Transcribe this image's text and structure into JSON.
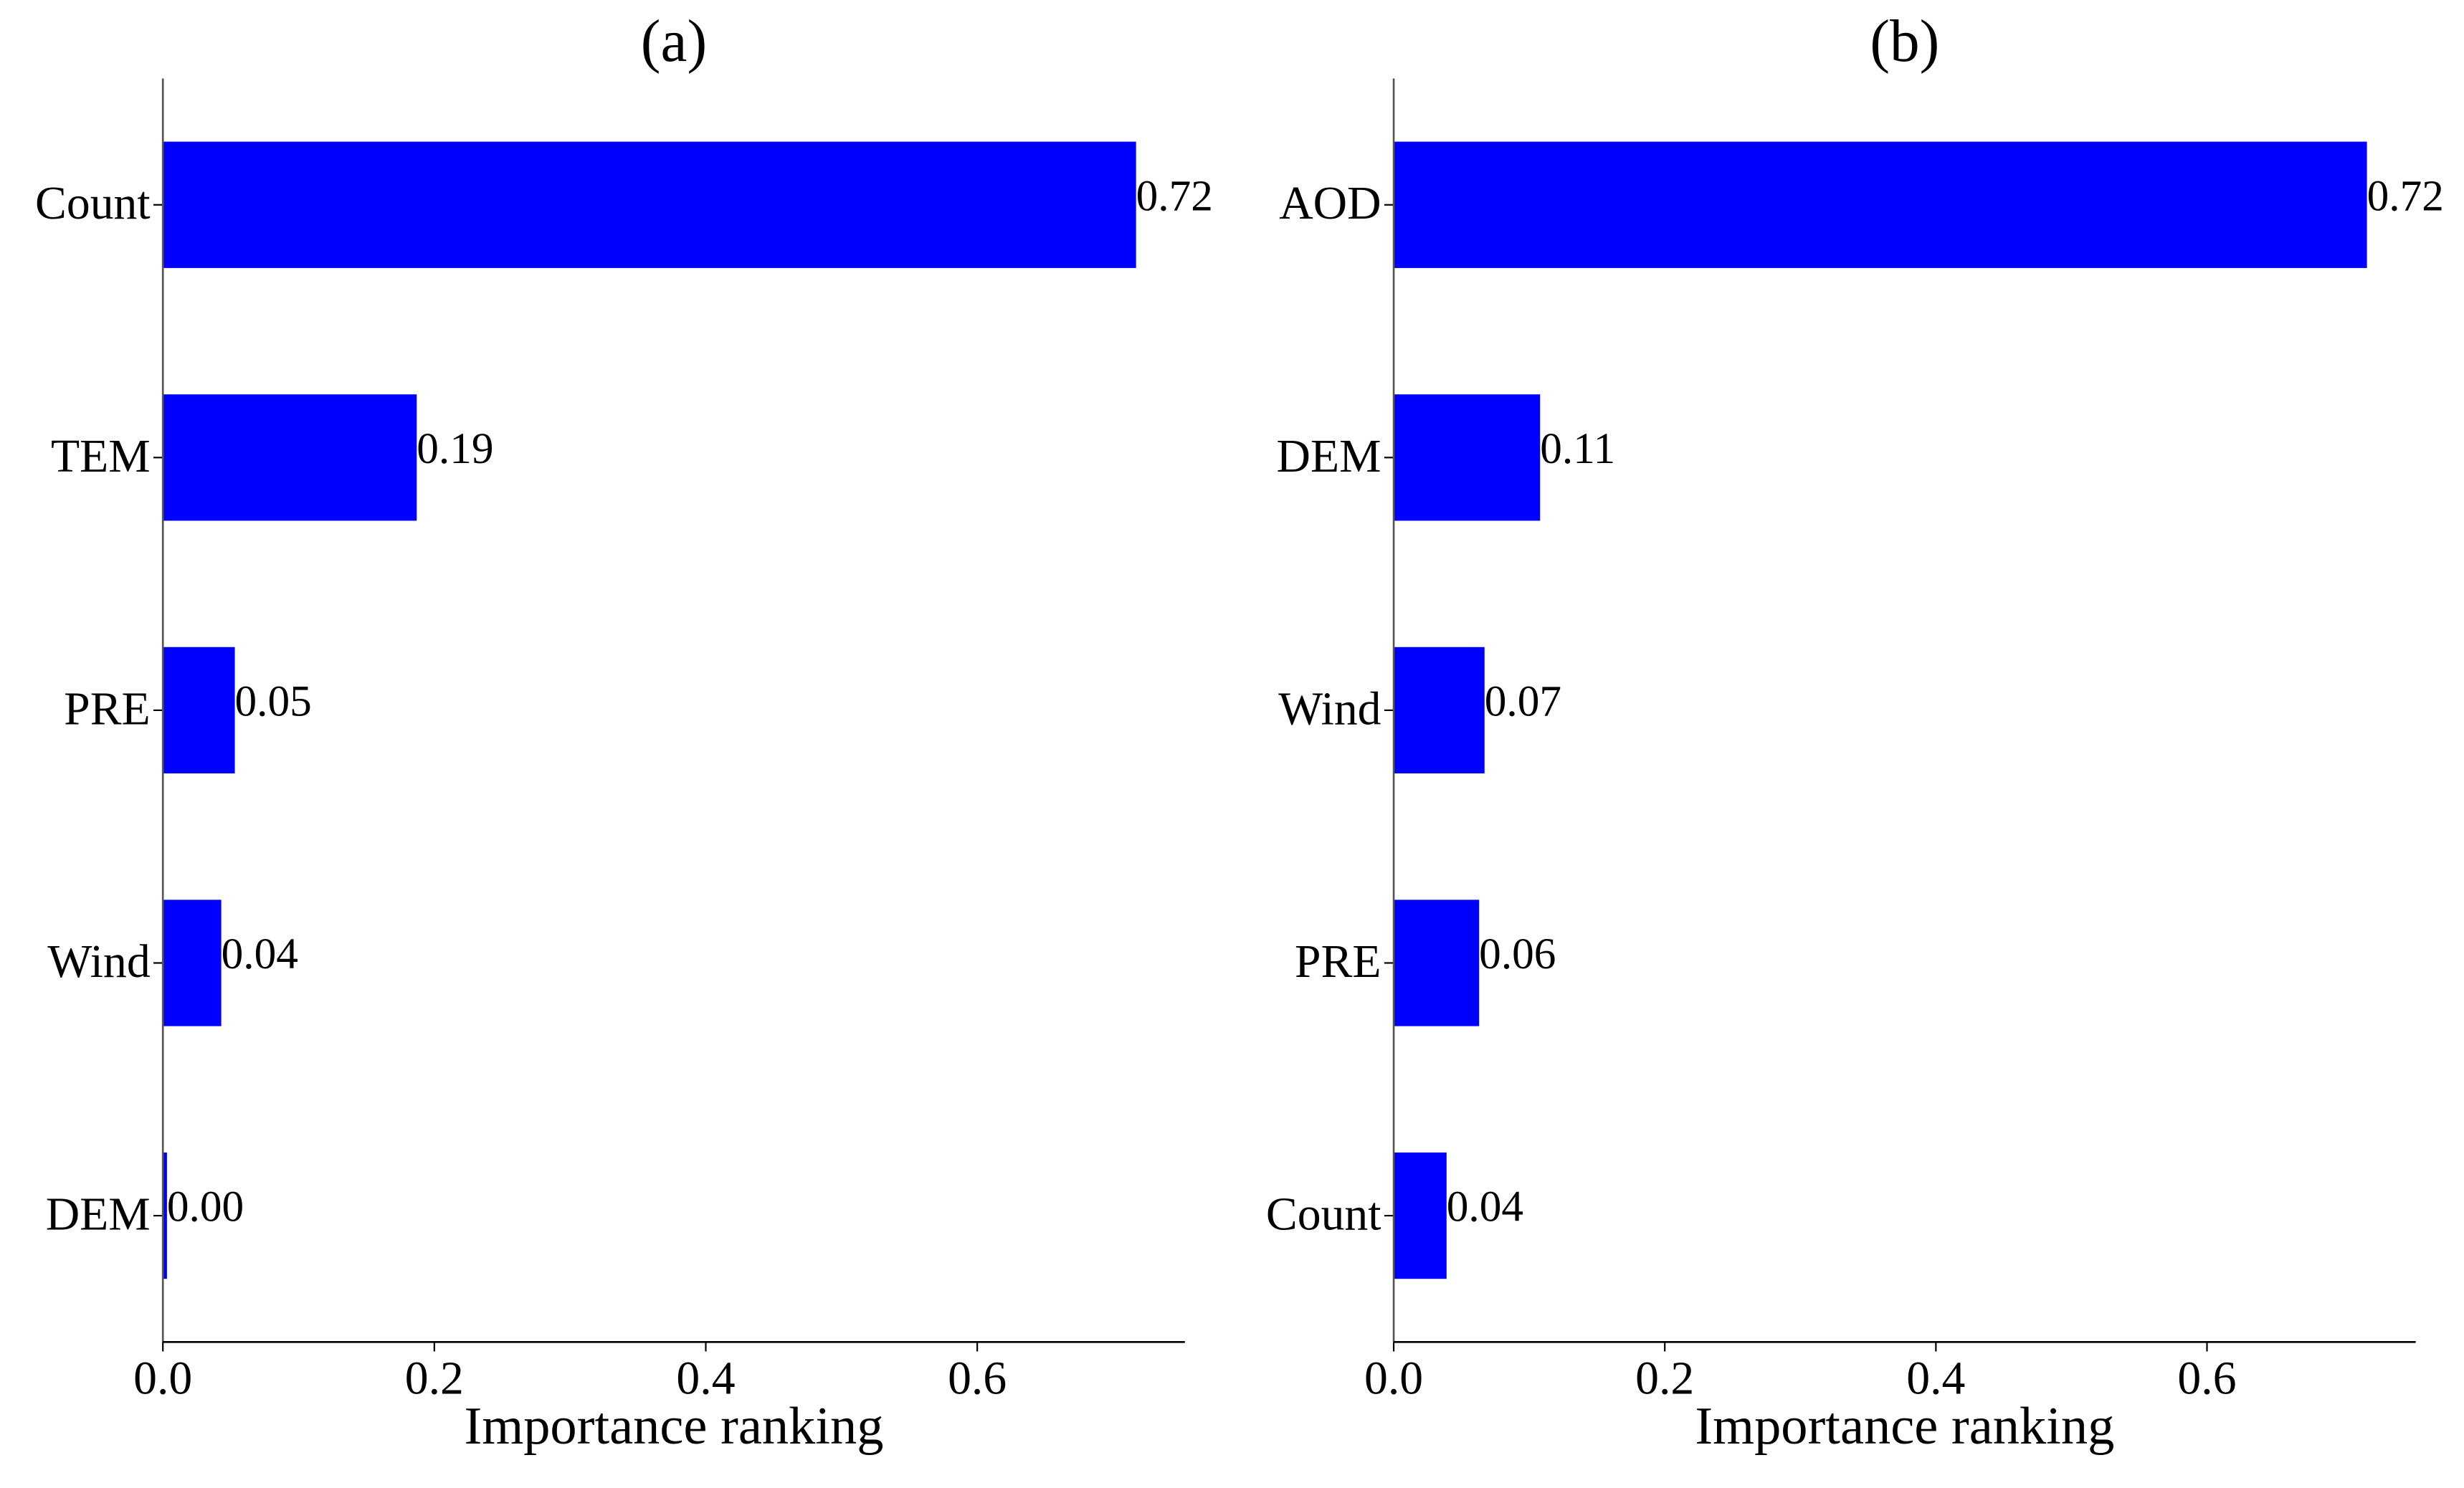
{
  "chart_data": [
    {
      "type": "bar",
      "orientation": "horizontal",
      "title": "(a)",
      "x_label": "Importance ranking",
      "categories": [
        "Count",
        "TEM",
        "PRE",
        "Wind",
        "DEM"
      ],
      "values": [
        0.717,
        0.187,
        0.053,
        0.043,
        0.003
      ],
      "value_labels": [
        "0.72",
        "0.19",
        "0.05",
        "0.04",
        "0.00"
      ],
      "color": "#0000ff",
      "xlim": [
        0,
        0.753
      ],
      "xticks": [
        {
          "value": 0,
          "label": "0.0"
        },
        0.2,
        0.4,
        0.6
      ]
    },
    {
      "type": "bar",
      "orientation": "horizontal",
      "title": "(b)",
      "x_label": "Importance ranking",
      "categories": [
        "AOD",
        "DEM",
        "Wind",
        "PRE",
        "Count"
      ],
      "values": [
        0.718,
        0.108,
        0.067,
        0.063,
        0.039
      ],
      "value_labels": [
        "0.72",
        "0.11",
        "0.07",
        "0.06",
        "0.04"
      ],
      "color": "#0000ff",
      "xlim": [
        0,
        0.754
      ],
      "xticks": [
        {
          "value": 0,
          "label": "0.0"
        },
        0.2,
        0.4,
        0.6
      ]
    }
  ]
}
